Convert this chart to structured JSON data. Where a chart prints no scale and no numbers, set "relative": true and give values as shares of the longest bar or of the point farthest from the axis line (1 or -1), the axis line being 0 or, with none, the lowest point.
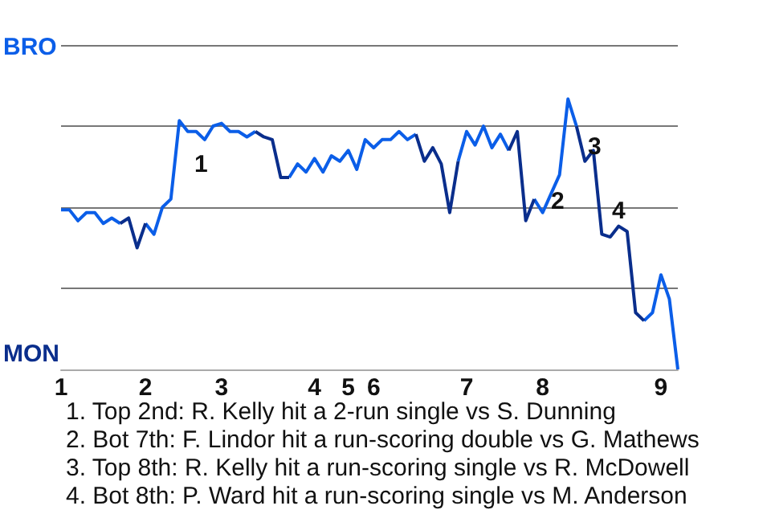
{
  "chart_data": {
    "type": "line",
    "relative": true,
    "categories": [
      "1",
      null,
      null,
      null,
      null,
      null,
      null,
      null,
      null,
      null,
      "2",
      null,
      null,
      null,
      null,
      null,
      null,
      null,
      null,
      "3",
      null,
      null,
      null,
      null,
      null,
      null,
      null,
      null,
      null,
      null,
      "4",
      null,
      null,
      null,
      "5",
      null,
      null,
      "6",
      null,
      null,
      null,
      null,
      null,
      null,
      null,
      null,
      null,
      null,
      "7",
      null,
      null,
      null,
      null,
      null,
      null,
      null,
      null,
      "8",
      null,
      null,
      null,
      null,
      null,
      null,
      null,
      null,
      null,
      null,
      null,
      null,
      null,
      "9",
      null,
      null
    ],
    "series": [
      {
        "color": "#0b5ee8",
        "values": [
          0.59,
          0.59,
          0.55,
          0.58,
          0.58,
          0.54,
          0.56,
          0.54,
          null,
          null,
          0.54,
          0.5,
          0.6,
          0.63,
          0.92,
          0.88,
          0.88,
          0.85,
          0.9,
          0.91,
          0.88,
          0.88,
          0.86,
          0.88,
          null,
          null,
          null,
          0.71,
          0.76,
          0.73,
          0.78,
          0.73,
          0.79,
          0.77,
          0.81,
          0.74,
          0.85,
          0.82,
          0.85,
          0.85,
          0.88,
          0.85,
          0.87,
          null,
          null,
          null,
          null,
          0.77,
          0.88,
          0.83,
          0.9,
          0.82,
          0.87,
          0.81,
          null,
          null,
          0.63,
          0.58,
          0.65,
          0.72,
          1,
          0.9,
          null,
          null,
          null,
          null,
          null,
          null,
          null,
          0.18,
          0.21,
          0.35,
          0.26,
          0
        ]
      },
      {
        "color": "#0a2e8c",
        "values": [
          null,
          null,
          null,
          null,
          null,
          null,
          null,
          0.54,
          0.56,
          0.45,
          0.54,
          null,
          null,
          null,
          null,
          null,
          null,
          null,
          null,
          null,
          null,
          null,
          null,
          0.88,
          0.86,
          0.85,
          0.71,
          0.71,
          null,
          null,
          null,
          null,
          null,
          null,
          null,
          null,
          null,
          null,
          null,
          null,
          null,
          null,
          0.87,
          0.77,
          0.82,
          0.76,
          0.58,
          0.77,
          null,
          null,
          null,
          null,
          null,
          0.81,
          0.88,
          0.55,
          0.63,
          null,
          null,
          null,
          null,
          0.9,
          0.77,
          0.81,
          0.5,
          0.49,
          0.53,
          0.51,
          0.21,
          0.18,
          null,
          null,
          null,
          null
        ]
      }
    ],
    "grid": "y",
    "annotations": [
      "BRO",
      "MON",
      "1",
      "2",
      "3",
      "4",
      "1. Top 2nd: R. Kelly hit a 2-run single vs S. Dunning",
      "2. Bot 7th: F. Lindor hit a run-scoring double vs G. Mathews",
      "3. Top 8th: R. Kelly hit a run-scoring single vs R. McDowell",
      "4. Bot 8th: P. Ward hit a run-scoring single vs M. Anderson"
    ]
  }
}
